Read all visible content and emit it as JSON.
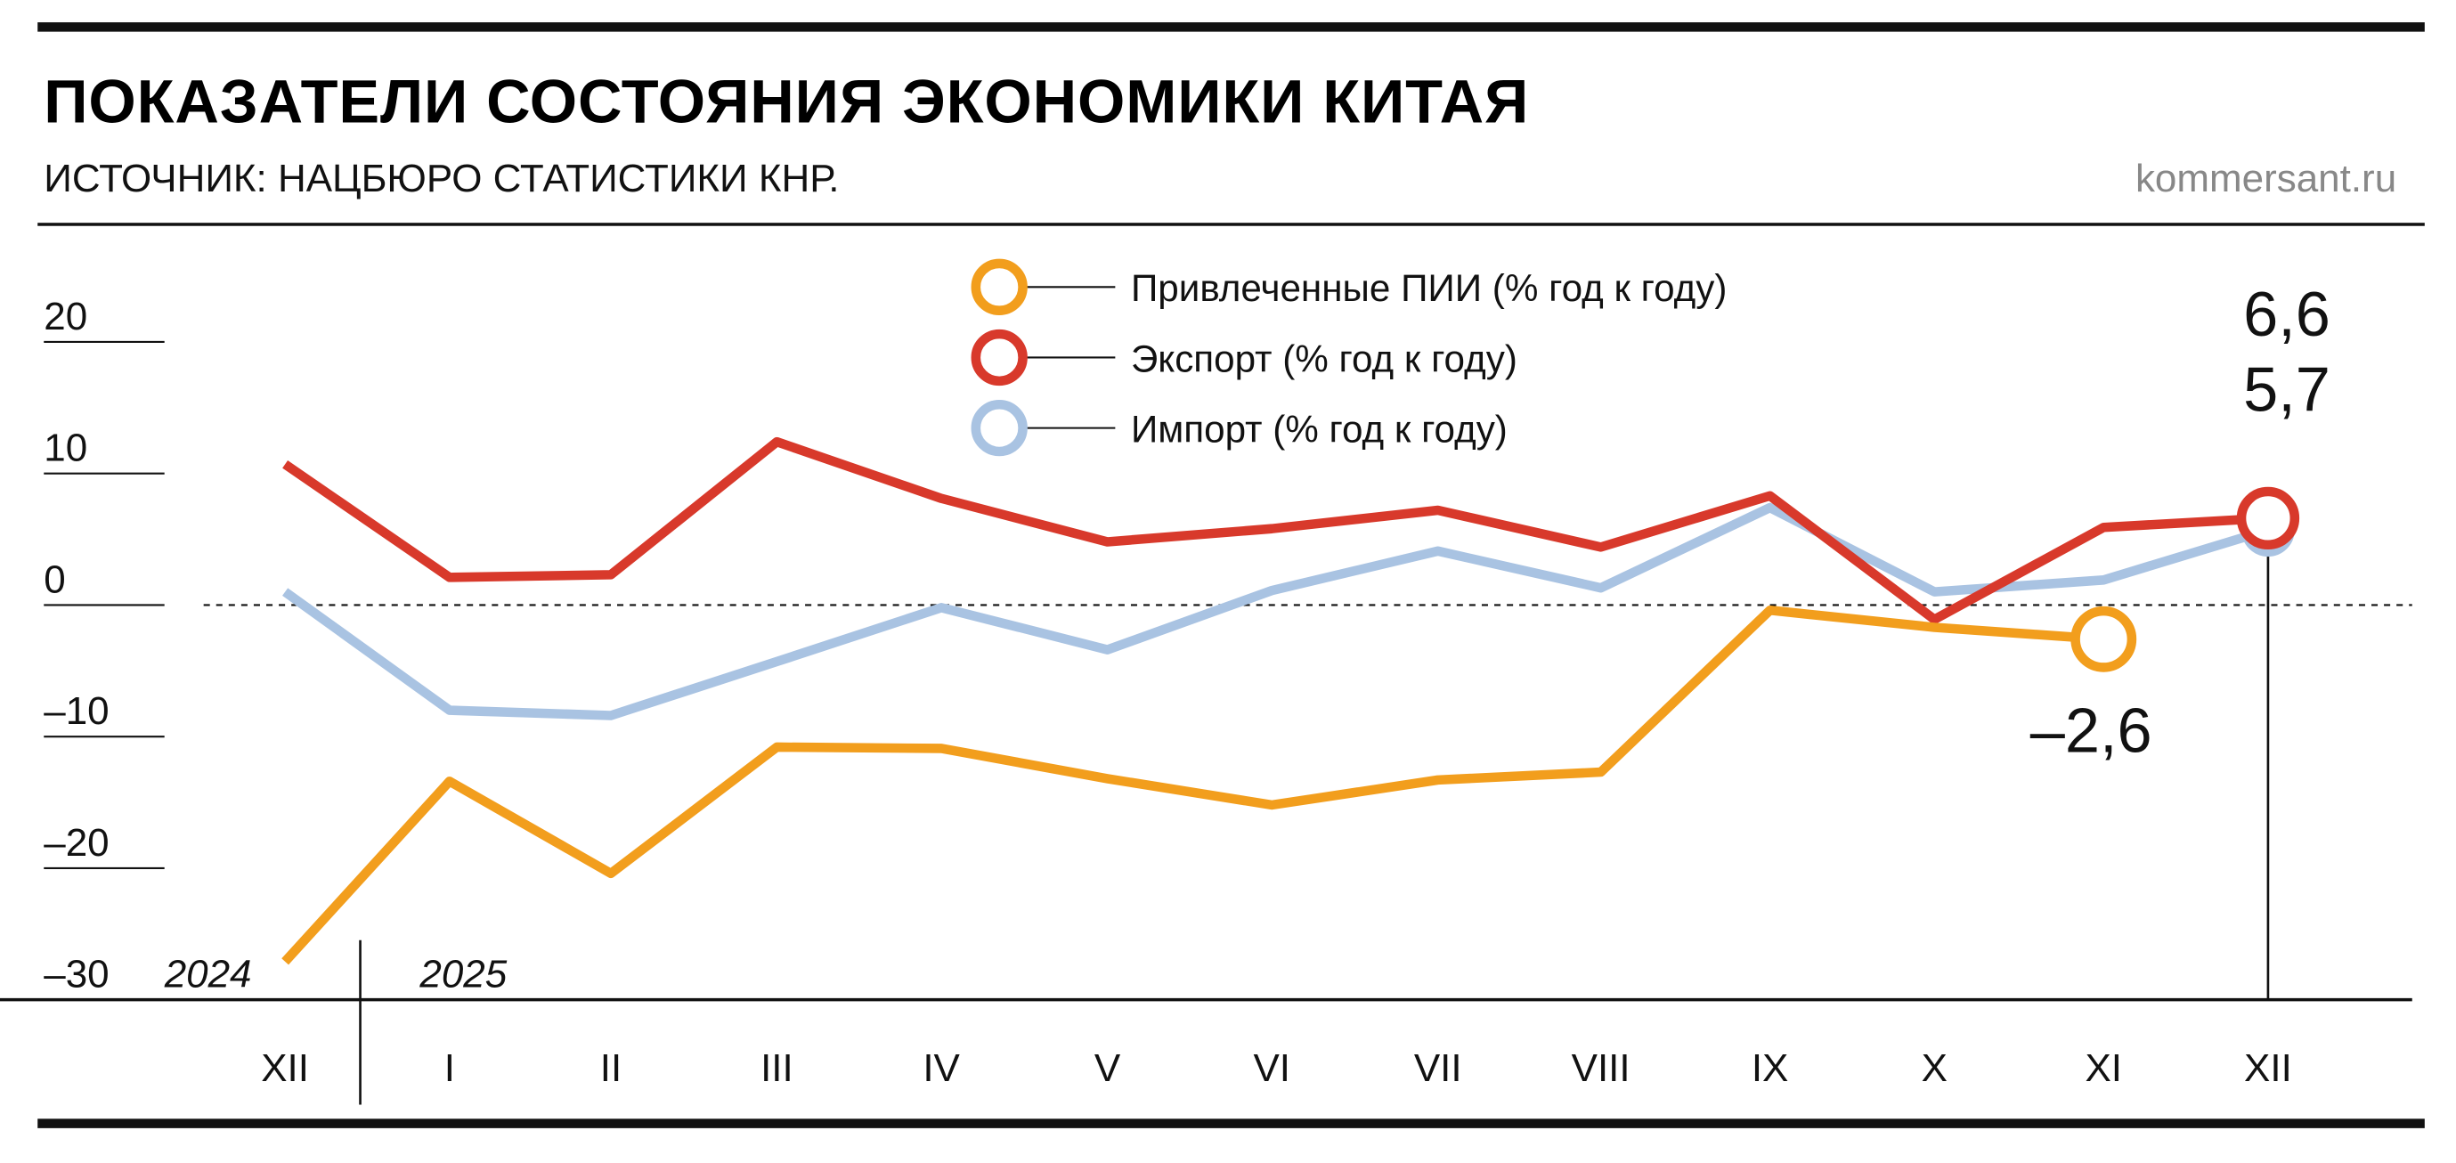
{
  "header": {
    "title": "ПОКАЗАТЕЛИ СОСТОЯНИЯ ЭКОНОМИКИ КИТАЯ",
    "subtitle": "ИСТОЧНИК: НАЦБЮРО СТАТИСТИКИ КНР.",
    "site": "kommersant.ru"
  },
  "chart_data": {
    "type": "line",
    "title": "ПОКАЗАТЕЛИ СОСТОЯНИЯ ЭКОНОМИКИ КИТАЯ",
    "categories": [
      "XII",
      "I",
      "II",
      "III",
      "IV",
      "V",
      "VI",
      "VII",
      "VIII",
      "IX",
      "X",
      "XI",
      "XII"
    ],
    "years": [
      {
        "label": "2024",
        "start_index": 0
      },
      {
        "label": "2025",
        "start_index": 1
      }
    ],
    "ylim": [
      -30,
      20
    ],
    "yticks": [
      20,
      10,
      0,
      -10,
      -20,
      -30
    ],
    "ytick_labels": [
      "20",
      "10",
      "0",
      "–10",
      "–20",
      "–30"
    ],
    "legend_position": "top-center",
    "series": [
      {
        "name": "Привлеченные ПИИ (% год к году)",
        "color": "#f29e1d",
        "values": [
          -27.1,
          -13.4,
          -20.4,
          -10.8,
          -10.9,
          -13.2,
          -15.2,
          -13.3,
          -12.7,
          -0.4,
          -1.7,
          -2.6,
          null
        ]
      },
      {
        "name": "Экспорт (% год к году)",
        "color": "#d8392b",
        "values": [
          10.7,
          2.1,
          2.3,
          12.4,
          8.1,
          4.8,
          5.8,
          7.2,
          4.4,
          8.3,
          -1.1,
          5.9,
          6.6
        ]
      },
      {
        "name": "Импорт (% год к году)",
        "color": "#a9c3e2",
        "values": [
          1.0,
          -8.0,
          -8.4,
          -4.3,
          -0.2,
          -3.4,
          1.1,
          4.1,
          1.3,
          7.4,
          1.0,
          1.9,
          5.7
        ]
      }
    ],
    "annotations": [
      "6,6",
      "5,7",
      "–2,6"
    ]
  }
}
